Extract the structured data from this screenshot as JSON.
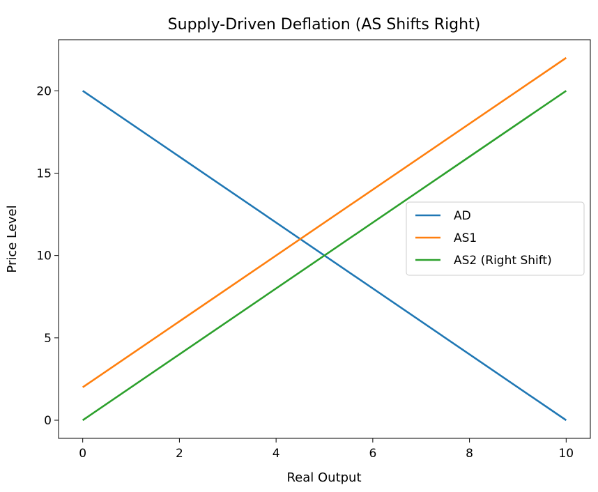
{
  "chart_data": {
    "type": "line",
    "title": "Supply-Driven Deflation (AS Shifts Right)",
    "xlabel": "Real Output",
    "ylabel": "Price Level",
    "xlim": [
      -0.5,
      10.5
    ],
    "ylim": [
      -1.1,
      23.1
    ],
    "xticks": [
      0,
      2,
      4,
      6,
      8,
      10
    ],
    "yticks": [
      0,
      5,
      10,
      15,
      20
    ],
    "grid": false,
    "legend_position": "center-right",
    "series": [
      {
        "name": "AD",
        "color": "#1f77b4",
        "x": [
          0,
          10
        ],
        "y": [
          20,
          0
        ]
      },
      {
        "name": "AS1",
        "color": "#ff7f0e",
        "x": [
          0,
          10
        ],
        "y": [
          2,
          22
        ]
      },
      {
        "name": "AS2 (Right Shift)",
        "color": "#2ca02c",
        "x": [
          0,
          10
        ],
        "y": [
          0,
          20
        ]
      }
    ]
  }
}
